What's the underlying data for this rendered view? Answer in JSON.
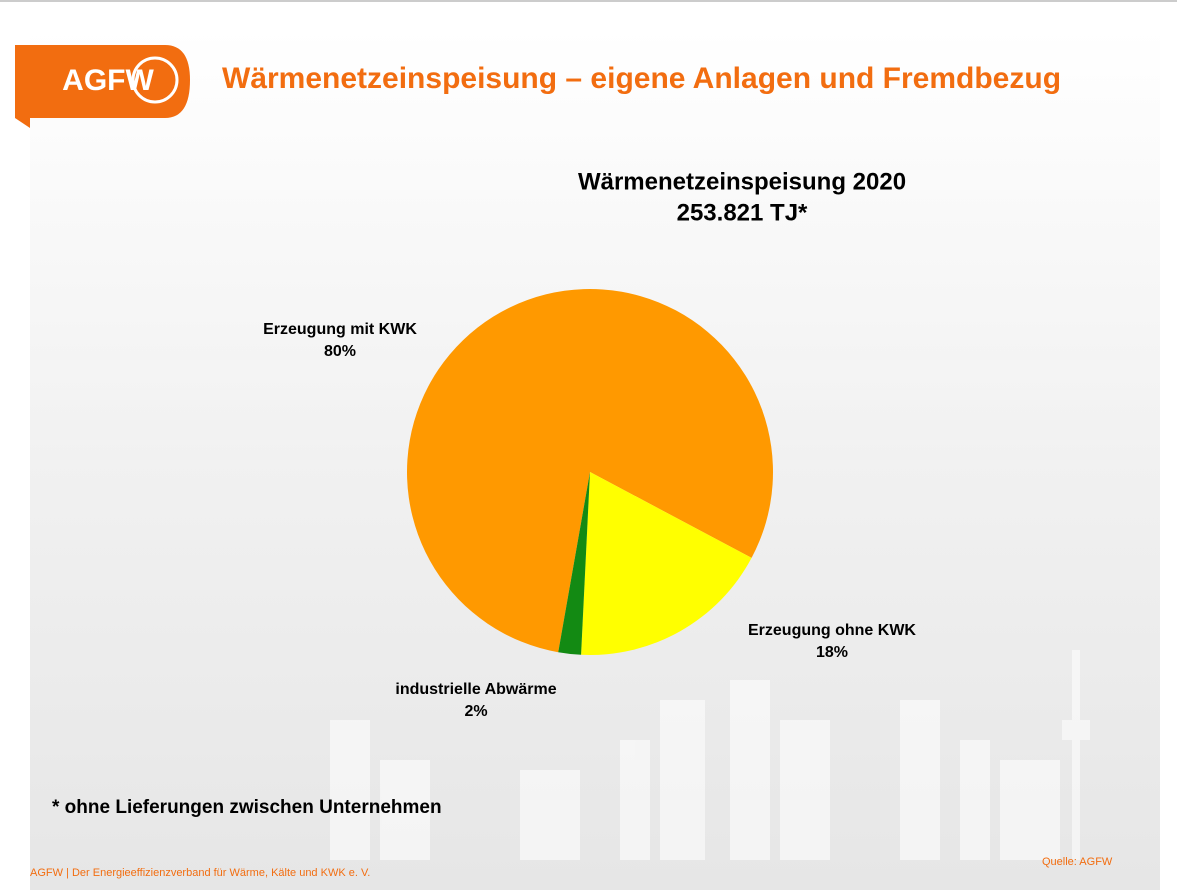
{
  "header": {
    "logo": "AGFW",
    "title": "Wärmenetzeinspeisung – eigene Anlagen und Fremdbezug"
  },
  "chart_data": {
    "type": "pie",
    "title": "Wärmenetzeinspeisung 2020",
    "subtitle": "253.821 TJ*",
    "categories": [
      "Erzeugung mit KWK",
      "Erzeugung ohne KWK",
      "industrielle Abwärme"
    ],
    "values": [
      80,
      18,
      2
    ],
    "value_labels": [
      "80%",
      "18%",
      "2%"
    ],
    "colors": [
      "#ff9900",
      "#ffff00",
      "#138a13"
    ]
  },
  "footnote": "* ohne Lieferungen zwischen Unternehmen",
  "footer": {
    "left": "AGFW | Der Energieeffizienzverband für Wärme, Kälte und KWK e. V.",
    "source": "Quelle: AGFW"
  }
}
